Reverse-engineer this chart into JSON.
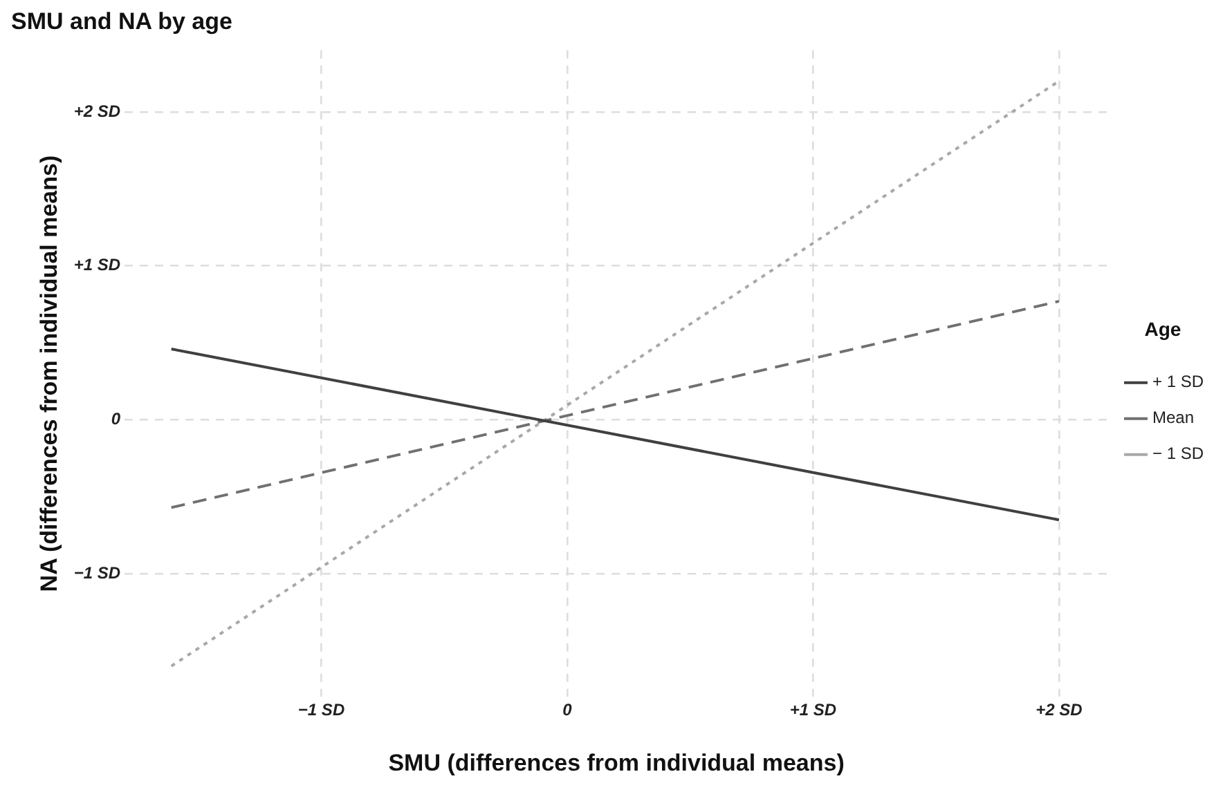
{
  "chart_data": {
    "type": "line",
    "title": "SMU and NA by age",
    "xlabel": "SMU (differences from individual means)",
    "ylabel": "NA (differences from individual means)",
    "legend_title": "Age",
    "legend": "right",
    "grid": true,
    "marker": "none",
    "xlim": [
      -1.8,
      2.2
    ],
    "x": [
      -1.61,
      2.0
    ],
    "ylim": [
      -1.8,
      2.4
    ],
    "xticks": [
      {
        "value": -1,
        "label": "−1 SD"
      },
      {
        "value": 0,
        "label": "0"
      },
      {
        "value": 1,
        "label": "+1 SD"
      },
      {
        "value": 2,
        "label": "+2 SD"
      }
    ],
    "yticks": [
      {
        "value": -1,
        "label": "−1 SD"
      },
      {
        "value": 0,
        "label": "0"
      },
      {
        "value": 1,
        "label": "+1 SD"
      },
      {
        "value": 2,
        "label": "+2 SD"
      }
    ],
    "series": [
      {
        "name": "+ 1 SD",
        "color": "#404040",
        "line_style": "solid",
        "values": [
          0.46,
          -0.65
        ]
      },
      {
        "name": "Mean",
        "color": "#707070",
        "line_style": "dashed",
        "values": [
          -0.57,
          0.77
        ]
      },
      {
        "name": "− 1 SD",
        "color": "#a8a8a8",
        "line_style": "dotted",
        "values": [
          -1.6,
          2.2
        ]
      }
    ]
  }
}
